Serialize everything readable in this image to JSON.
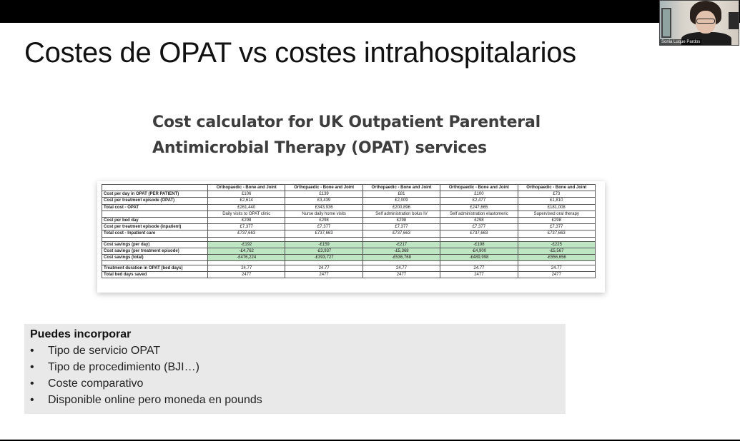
{
  "slide": {
    "title": "Costes de OPAT vs costes intrahospitalarios",
    "subtitle_lines": [
      "Cost calculator for UK Outpatient Parenteral",
      "Antimicrobial Therapy (OPAT) services"
    ]
  },
  "video_tile": {
    "name": "Sonia Luque Pardos"
  },
  "calc_table": {
    "headers": [
      "",
      "Orthopaedic - Bone and Joint",
      "Orthopaedic - Bone and Joint",
      "Orthopaedic - Bone and Joint",
      "Orthopaedic - Bone and Joint",
      "Orthopaedic - Bone and Joint"
    ],
    "rows": [
      {
        "label": "Cost per day in OPAT (PER PATIENT)",
        "values": [
          "£106",
          "£139",
          "£81",
          "£100",
          "£73"
        ]
      },
      {
        "label": "Cost per treatment episode (OPAT)",
        "values": [
          "£2,614",
          "£3,439",
          "£2,009",
          "£2,477",
          "£1,810"
        ]
      },
      {
        "label": "Total cost - OPAT",
        "values": [
          "£261,440",
          "£343,936",
          "£200,896",
          "£247,665",
          "£181,008"
        ]
      },
      {
        "label": "",
        "values": [
          "Daily visits to OPAT clinic",
          "Nurse daily home visits",
          "Self administration bolus IV",
          "Self administration elastomeric",
          "Supervised oral therapy"
        ]
      },
      {
        "label": "Cost per bed day",
        "values": [
          "£298",
          "£298",
          "£298",
          "£298",
          "£298"
        ]
      },
      {
        "label": "Cost per treatment episode (inpatient)",
        "values": [
          "£7,377",
          "£7,377",
          "£7,377",
          "£7,377",
          "£7,377"
        ]
      },
      {
        "label": "Total cost - Inpatient care",
        "values": [
          "£737,663",
          "£737,663",
          "£737,663",
          "£737,663",
          "£737,663"
        ]
      },
      {
        "blank": true,
        "label": "",
        "values": [
          "",
          "",
          "",
          "",
          ""
        ]
      },
      {
        "green": true,
        "label": "Cost savings (per day)",
        "values": [
          "-£192",
          "-£159",
          "-£217",
          "-£198",
          "-£225"
        ]
      },
      {
        "green": true,
        "label": "Cost savings (per treatment episode)",
        "values": [
          "-£4,762",
          "-£3,937",
          "-£5,368",
          "-£4,900",
          "-£5,567"
        ]
      },
      {
        "green": true,
        "label": "Cost savings (total)",
        "values": [
          "-£476,224",
          "-£393,727",
          "-£536,768",
          "-£489,998",
          "-£556,656"
        ]
      },
      {
        "blank": true,
        "label": "",
        "values": [
          "",
          "",
          "",
          "",
          ""
        ]
      },
      {
        "label": "Treatment duration in OPAT (bed days)",
        "values": [
          "24.77",
          "24.77",
          "24.77",
          "24.77",
          "24.77"
        ]
      },
      {
        "label": "Total bed days saved",
        "values": [
          "2477",
          "2477",
          "2477",
          "2477",
          "2477"
        ]
      }
    ]
  },
  "notes": {
    "title": "Puedes incorporar",
    "bullet_glyph": "•",
    "items": [
      "Tipo de servicio OPAT",
      "Tipo de procedimiento (BJI…)",
      "Coste comparativo",
      "Disponible online pero moneda en pounds"
    ]
  }
}
